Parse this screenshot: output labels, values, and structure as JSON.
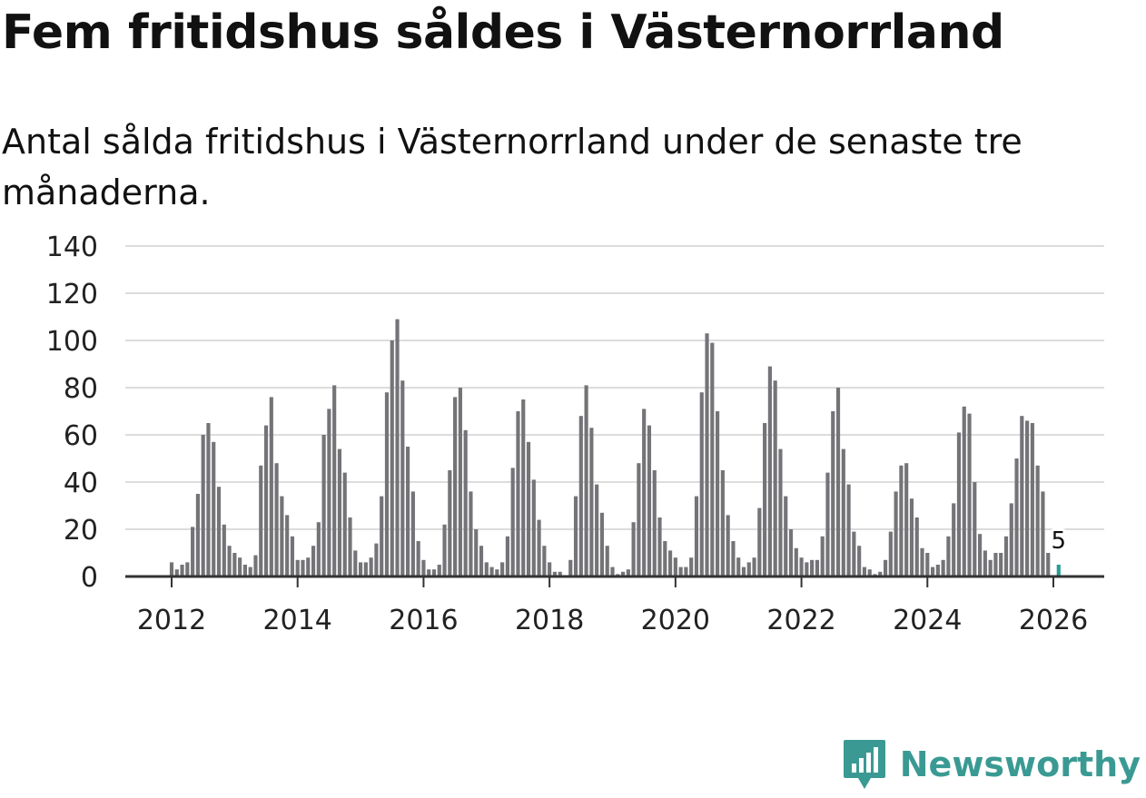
{
  "header": {
    "title": "Fem fritidshus såldes i Västernorrland",
    "subtitle": "Antal sålda fritidshus i Västernorrland under de senaste tre månaderna."
  },
  "brand": {
    "name": "Newsworthy",
    "color": "#3a9a93",
    "icon": "newsworthy-logo-icon"
  },
  "chart_data": {
    "type": "bar",
    "title": "",
    "xlabel": "",
    "ylabel": "",
    "ylim": [
      0,
      140
    ],
    "yticks": [
      "0",
      "20",
      "40",
      "60",
      "80",
      "100",
      "120",
      "140"
    ],
    "xticks": [
      "2012",
      "2014",
      "2016",
      "2018",
      "2020",
      "2022",
      "2024",
      "2026"
    ],
    "grid": true,
    "colors": {
      "bars": "#747377",
      "highlight": "#2a9d96"
    },
    "start_month": "2011-01",
    "annotation": {
      "label": "5",
      "value": 5,
      "month": "2026-02"
    },
    "values": [
      0,
      0,
      0,
      0,
      0,
      0,
      0,
      0,
      0,
      0,
      0,
      0,
      6,
      3,
      5,
      6,
      21,
      35,
      60,
      65,
      57,
      38,
      22,
      13,
      10,
      8,
      5,
      4,
      9,
      47,
      64,
      76,
      48,
      34,
      26,
      17,
      7,
      7,
      8,
      13,
      23,
      60,
      71,
      81,
      54,
      44,
      25,
      11,
      6,
      6,
      8,
      14,
      34,
      78,
      100,
      109,
      83,
      55,
      36,
      15,
      7,
      3,
      3,
      5,
      22,
      45,
      76,
      80,
      62,
      36,
      20,
      13,
      6,
      4,
      3,
      6,
      17,
      46,
      70,
      75,
      57,
      41,
      24,
      13,
      6,
      2,
      2,
      0,
      7,
      34,
      68,
      81,
      63,
      39,
      27,
      13,
      4,
      1,
      2,
      3,
      23,
      48,
      71,
      64,
      45,
      25,
      15,
      11,
      8,
      4,
      4,
      8,
      34,
      78,
      103,
      99,
      70,
      45,
      26,
      15,
      8,
      4,
      6,
      8,
      29,
      65,
      89,
      83,
      54,
      34,
      20,
      12,
      8,
      6,
      7,
      7,
      17,
      44,
      70,
      80,
      54,
      39,
      19,
      13,
      4,
      3,
      1,
      2,
      7,
      19,
      36,
      47,
      48,
      33,
      25,
      12,
      10,
      4,
      5,
      7,
      17,
      31,
      61,
      72,
      69,
      40,
      18,
      11,
      7,
      10,
      10,
      17,
      31,
      50,
      68,
      66,
      65,
      47,
      36,
      10,
      0,
      5
    ]
  }
}
